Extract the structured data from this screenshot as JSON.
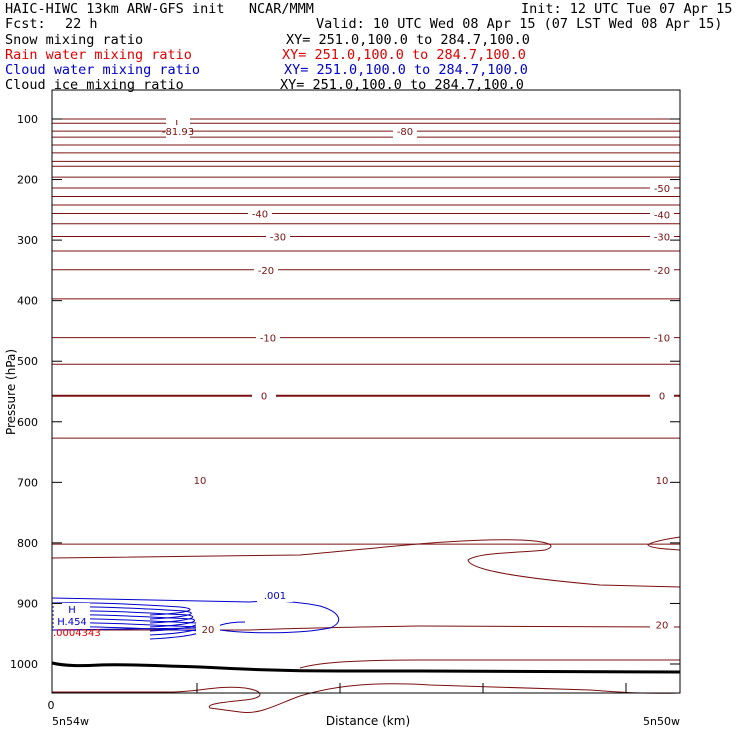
{
  "header": {
    "title": "HAIC-HIWC 13km ARW-GFS init   NCAR/MMM",
    "init": "Init: 12 UTC Tue 07 Apr 15",
    "fcst_label": "Fcst:",
    "fcst_value": "22 h",
    "valid": "Valid: 10 UTC Wed 08 Apr 15 (07 LST Wed 08 Apr 15)"
  },
  "fields": [
    {
      "name": "Snow mixing ratio",
      "xy": "XY= 251.0,100.0 to 284.7,100.0",
      "color": "#000000"
    },
    {
      "name": "Rain water mixing ratio",
      "xy": "XY= 251.0,100.0 to 284.7,100.0",
      "color": "#e00000"
    },
    {
      "name": "Cloud water mixing ratio",
      "xy": "XY= 251.0,100.0 to 284.7,100.0",
      "color": "#0000cc"
    },
    {
      "name": "Cloud ice mixing ratio",
      "xy": "XY= 251.0,100.0 to 284.7,100.0",
      "color": "#000000"
    }
  ],
  "chart_data": {
    "type": "contour",
    "ylabel": "Pressure (hPa)",
    "xlabel": "Distance (km)",
    "y_ticks": [
      100,
      200,
      300,
      400,
      500,
      600,
      700,
      800,
      900,
      1000
    ],
    "x_tick_label": "0",
    "x_start_label": "5n54w",
    "x_end_label": "5n50w",
    "temperature_contour_color": "#7a1010",
    "temperature_contour_labels": [
      {
        "text": "L",
        "side": "left",
        "p": 107
      },
      {
        "text": "-81.93",
        "side": "left",
        "p": 120
      },
      {
        "text": "-80",
        "side": "mid",
        "p": 120
      },
      {
        "text": "-50",
        "side": "right",
        "p": 214
      },
      {
        "text": "-40",
        "side": "mid",
        "p": 256
      },
      {
        "text": "-40",
        "side": "right",
        "p": 258
      },
      {
        "text": "-30",
        "side": "mid",
        "p": 294
      },
      {
        "text": "-30",
        "side": "right",
        "p": 294
      },
      {
        "text": "-20",
        "side": "mid",
        "p": 349
      },
      {
        "text": "-20",
        "side": "right",
        "p": 349
      },
      {
        "text": "-10",
        "side": "mid",
        "p": 461
      },
      {
        "text": "-10",
        "side": "right",
        "p": 461
      },
      {
        "text": "0",
        "side": "mid",
        "p": 557
      },
      {
        "text": "0",
        "side": "right",
        "p": 557
      },
      {
        "text": "10",
        "side": "mid",
        "p": 696
      },
      {
        "text": "10",
        "side": "right",
        "p": 696
      },
      {
        "text": "20",
        "side": "mid",
        "p": 942
      },
      {
        "text": "20",
        "side": "right",
        "p": 935
      }
    ],
    "cloud_water_labels": [
      {
        "text": ".001"
      },
      {
        "text": "H"
      },
      {
        "text": "H.454"
      }
    ],
    "rain_label": ".0004343"
  }
}
